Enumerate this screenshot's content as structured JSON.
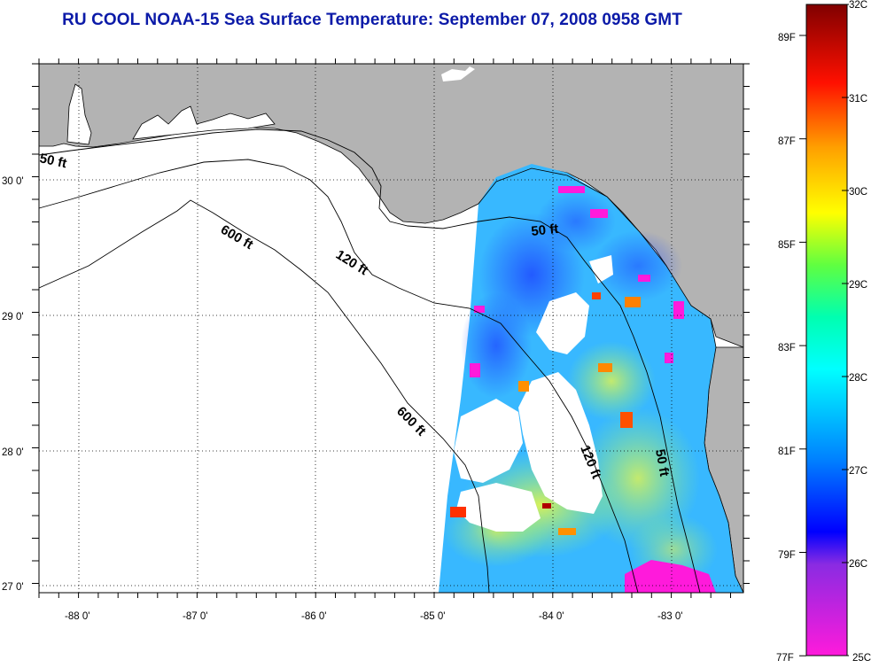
{
  "title": "RU COOL  NOAA-15  Sea Surface Temperature:  September 07, 2008 0958 GMT",
  "map": {
    "lon_ticks": [
      "-88 0'",
      "-87 0'",
      "-86 0'",
      "-85 0'",
      "-84 0'",
      "-83 0'"
    ],
    "lat_ticks": [
      "30 0'",
      "29 0'",
      "28 0'",
      "27 0'"
    ],
    "contours": [
      "50 ft",
      "120 ft",
      "600 ft",
      "600 ft",
      "50 ft",
      "120 ft",
      "50 ft"
    ],
    "colors": {
      "land": "#b3b3b3",
      "frame": "#000000",
      "grid": "#000000"
    }
  },
  "colorbar": {
    "celsius": [
      "32C",
      "31C",
      "30C",
      "29C",
      "28C",
      "27C",
      "26C",
      "25C"
    ],
    "fahrenheit": [
      "89F",
      "87F",
      "85F",
      "83F",
      "81F",
      "79F",
      "77F"
    ],
    "colors": [
      "#ff1adb",
      "#8a2be2",
      "#0000ff",
      "#00c8ff",
      "#00ffd0",
      "#60ff40",
      "#ffff00",
      "#ffa000",
      "#ff0000",
      "#800000"
    ]
  }
}
